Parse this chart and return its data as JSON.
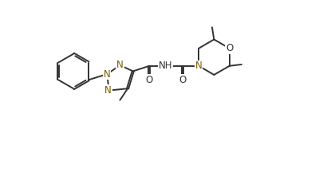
{
  "bg_color": "#ffffff",
  "line_color": "#333333",
  "atom_color_N": "#7B5B00",
  "atom_color_O": "#333333",
  "line_width": 1.4,
  "font_size_atom": 8.5,
  "figsize": [
    3.95,
    2.16
  ],
  "dpi": 100,
  "xlim": [
    0,
    10
  ],
  "ylim": [
    0,
    5.5
  ]
}
